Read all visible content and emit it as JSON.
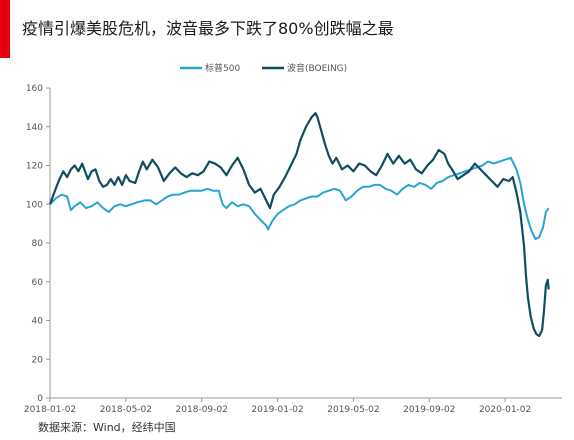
{
  "title": "疫情引爆美股危机，波音最多下跌了80%创跌幅之最",
  "source": "数据来源：Wind，经纬中国",
  "chart_data": {
    "type": "line",
    "title": "疫情引爆美股危机，波音最多下跌了80%创跌幅之最",
    "xlabel": "",
    "ylabel": "",
    "ylim": [
      0,
      160
    ],
    "yticks": [
      0,
      20,
      40,
      60,
      80,
      100,
      120,
      140,
      160
    ],
    "xticks": [
      "2018-01-02",
      "2018-05-02",
      "2018-09-02",
      "2019-01-02",
      "2019-05-02",
      "2019-09-02",
      "2020-01-02"
    ],
    "xrange_months": [
      0,
      27
    ],
    "legend_position": "top-center",
    "grid": false,
    "series": [
      {
        "name": "标普500",
        "color": "#29a3d4",
        "points": [
          [
            0,
            100
          ],
          [
            0.3,
            103
          ],
          [
            0.6,
            105
          ],
          [
            0.9,
            104
          ],
          [
            1.1,
            97
          ],
          [
            1.3,
            99
          ],
          [
            1.6,
            101
          ],
          [
            1.9,
            98
          ],
          [
            2.2,
            99
          ],
          [
            2.5,
            101
          ],
          [
            2.8,
            98
          ],
          [
            3.1,
            96
          ],
          [
            3.4,
            99
          ],
          [
            3.7,
            100
          ],
          [
            4,
            99
          ],
          [
            4.3,
            100
          ],
          [
            4.6,
            101
          ],
          [
            5,
            102
          ],
          [
            5.3,
            102
          ],
          [
            5.6,
            100
          ],
          [
            5.9,
            102
          ],
          [
            6.2,
            104
          ],
          [
            6.5,
            105
          ],
          [
            6.8,
            105
          ],
          [
            7.1,
            106
          ],
          [
            7.4,
            107
          ],
          [
            7.7,
            107
          ],
          [
            8,
            107
          ],
          [
            8.3,
            108
          ],
          [
            8.6,
            107
          ],
          [
            8.9,
            107
          ],
          [
            9.1,
            100
          ],
          [
            9.3,
            98
          ],
          [
            9.6,
            101
          ],
          [
            9.9,
            99
          ],
          [
            10.2,
            100
          ],
          [
            10.5,
            99
          ],
          [
            10.8,
            95
          ],
          [
            11.1,
            92
          ],
          [
            11.4,
            89
          ],
          [
            11.5,
            87
          ],
          [
            11.7,
            91
          ],
          [
            12,
            95
          ],
          [
            12.3,
            97
          ],
          [
            12.6,
            99
          ],
          [
            12.9,
            100
          ],
          [
            13.2,
            102
          ],
          [
            13.5,
            103
          ],
          [
            13.8,
            104
          ],
          [
            14.1,
            104
          ],
          [
            14.4,
            106
          ],
          [
            14.7,
            107
          ],
          [
            15,
            108
          ],
          [
            15.3,
            107
          ],
          [
            15.6,
            102
          ],
          [
            15.9,
            104
          ],
          [
            16.2,
            107
          ],
          [
            16.5,
            109
          ],
          [
            16.8,
            109
          ],
          [
            17.1,
            110
          ],
          [
            17.4,
            110
          ],
          [
            17.7,
            108
          ],
          [
            18,
            107
          ],
          [
            18.3,
            105
          ],
          [
            18.6,
            108
          ],
          [
            18.9,
            110
          ],
          [
            19.2,
            109
          ],
          [
            19.5,
            111
          ],
          [
            19.8,
            110
          ],
          [
            20.1,
            108
          ],
          [
            20.4,
            111
          ],
          [
            20.7,
            112
          ],
          [
            21,
            114
          ],
          [
            21.3,
            115
          ],
          [
            21.6,
            116
          ],
          [
            21.9,
            117
          ],
          [
            22.2,
            118
          ],
          [
            22.5,
            119
          ],
          [
            22.8,
            120
          ],
          [
            23.1,
            122
          ],
          [
            23.4,
            121
          ],
          [
            23.7,
            122
          ],
          [
            24,
            123
          ],
          [
            24.3,
            124
          ],
          [
            24.6,
            118
          ],
          [
            24.8,
            111
          ],
          [
            25,
            100
          ],
          [
            25.2,
            92
          ],
          [
            25.4,
            86
          ],
          [
            25.6,
            82
          ],
          [
            25.8,
            83
          ],
          [
            26,
            88
          ],
          [
            26.15,
            96
          ],
          [
            26.3,
            98
          ]
        ]
      },
      {
        "name": "波音(BOEING)",
        "color": "#0f4d5f",
        "points": [
          [
            0,
            100
          ],
          [
            0.3,
            108
          ],
          [
            0.5,
            113
          ],
          [
            0.7,
            117
          ],
          [
            0.9,
            114
          ],
          [
            1.1,
            118
          ],
          [
            1.3,
            120
          ],
          [
            1.5,
            117
          ],
          [
            1.7,
            121
          ],
          [
            2,
            113
          ],
          [
            2.2,
            117
          ],
          [
            2.4,
            118
          ],
          [
            2.6,
            112
          ],
          [
            2.8,
            109
          ],
          [
            3,
            110
          ],
          [
            3.2,
            113
          ],
          [
            3.4,
            110
          ],
          [
            3.6,
            114
          ],
          [
            3.8,
            110
          ],
          [
            4,
            115
          ],
          [
            4.2,
            112
          ],
          [
            4.5,
            111
          ],
          [
            4.7,
            117
          ],
          [
            4.9,
            122
          ],
          [
            5.1,
            118
          ],
          [
            5.4,
            123
          ],
          [
            5.7,
            119
          ],
          [
            6,
            112
          ],
          [
            6.3,
            116
          ],
          [
            6.6,
            119
          ],
          [
            6.9,
            116
          ],
          [
            7.2,
            114
          ],
          [
            7.5,
            116
          ],
          [
            7.8,
            115
          ],
          [
            8.1,
            117
          ],
          [
            8.4,
            122
          ],
          [
            8.7,
            121
          ],
          [
            9,
            119
          ],
          [
            9.3,
            115
          ],
          [
            9.6,
            120
          ],
          [
            9.9,
            124
          ],
          [
            10.2,
            118
          ],
          [
            10.5,
            110
          ],
          [
            10.8,
            106
          ],
          [
            11.1,
            108
          ],
          [
            11.4,
            102
          ],
          [
            11.6,
            98
          ],
          [
            11.8,
            105
          ],
          [
            12.1,
            109
          ],
          [
            12.4,
            114
          ],
          [
            12.7,
            120
          ],
          [
            13,
            126
          ],
          [
            13.2,
            133
          ],
          [
            13.5,
            140
          ],
          [
            13.8,
            145
          ],
          [
            14,
            147
          ],
          [
            14.1,
            145
          ],
          [
            14.3,
            138
          ],
          [
            14.5,
            131
          ],
          [
            14.7,
            125
          ],
          [
            14.9,
            121
          ],
          [
            15.1,
            124
          ],
          [
            15.4,
            118
          ],
          [
            15.7,
            120
          ],
          [
            16,
            117
          ],
          [
            16.3,
            121
          ],
          [
            16.6,
            120
          ],
          [
            16.9,
            117
          ],
          [
            17.2,
            115
          ],
          [
            17.5,
            120
          ],
          [
            17.8,
            126
          ],
          [
            18.1,
            121
          ],
          [
            18.4,
            125
          ],
          [
            18.7,
            121
          ],
          [
            19,
            123
          ],
          [
            19.3,
            118
          ],
          [
            19.6,
            116
          ],
          [
            19.9,
            120
          ],
          [
            20.2,
            123
          ],
          [
            20.5,
            128
          ],
          [
            20.8,
            126
          ],
          [
            21,
            121
          ],
          [
            21.2,
            118
          ],
          [
            21.5,
            113
          ],
          [
            21.8,
            115
          ],
          [
            22.1,
            117
          ],
          [
            22.4,
            121
          ],
          [
            22.7,
            118
          ],
          [
            23,
            115
          ],
          [
            23.3,
            112
          ],
          [
            23.6,
            109
          ],
          [
            23.9,
            113
          ],
          [
            24.2,
            112
          ],
          [
            24.4,
            114
          ],
          [
            24.6,
            106
          ],
          [
            24.8,
            96
          ],
          [
            25,
            78
          ],
          [
            25.1,
            63
          ],
          [
            25.2,
            52
          ],
          [
            25.35,
            42
          ],
          [
            25.5,
            36
          ],
          [
            25.65,
            33
          ],
          [
            25.8,
            32
          ],
          [
            25.95,
            35
          ],
          [
            26.05,
            45
          ],
          [
            26.15,
            58
          ],
          [
            26.25,
            61
          ],
          [
            26.3,
            56
          ]
        ]
      }
    ]
  }
}
